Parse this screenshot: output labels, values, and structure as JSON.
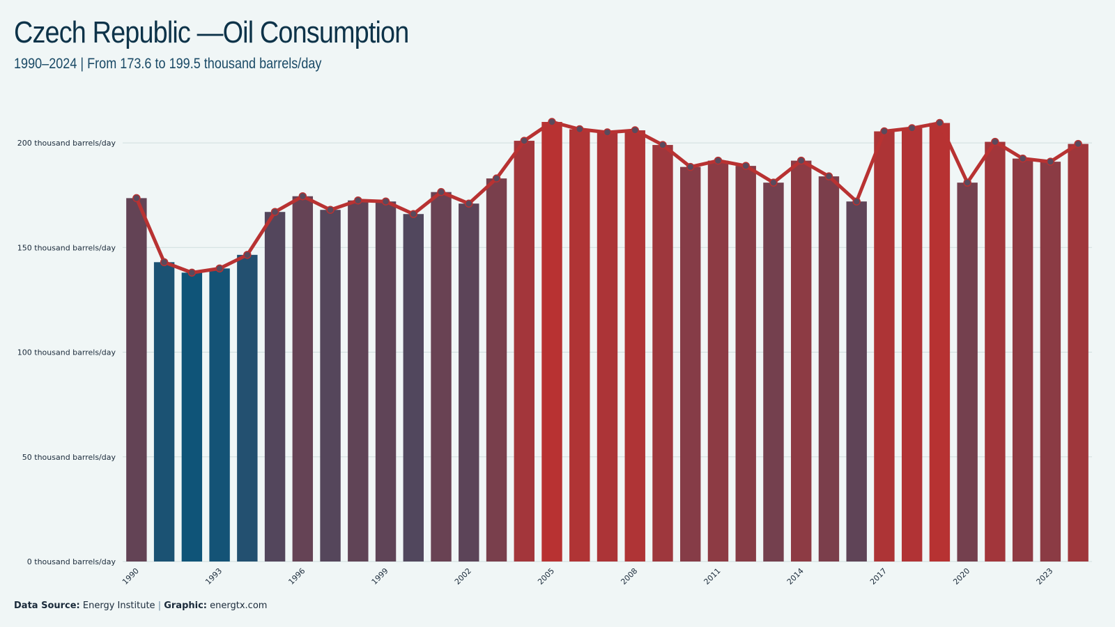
{
  "header": {
    "title": "Czech Republic —Oil Consumption",
    "subtitle": "1990–2024 | From 173.6 to 199.5 thousand barrels/day"
  },
  "footer": {
    "source_label": "Data Source:",
    "source_value": "Energy Institute",
    "separator": "|",
    "graphic_label": "Graphic:",
    "graphic_value": "energtx.com"
  },
  "colors": {
    "background": "#f0f6f6",
    "low": "#0f5478",
    "high": "#b83232",
    "line": "#b83232",
    "marker_fill": "#5a4a5c",
    "gridline": "#cfdede"
  },
  "chart_data": {
    "type": "bar",
    "title": "Czech Republic —Oil Consumption",
    "subtitle": "1990–2024 | From 173.6 to 199.5 thousand barrels/day",
    "xlabel": "",
    "ylabel": "",
    "ylim": [
      0,
      215
    ],
    "yticks": [
      0,
      50,
      100,
      150,
      200
    ],
    "ytick_labels": [
      "0 thousand barrels/day",
      "50 thousand barrels/day",
      "100 thousand barrels/day",
      "150 thousand barrels/day",
      "200 thousand barrels/day"
    ],
    "xtick_labels": [
      "1990",
      "1993",
      "1996",
      "1999",
      "2002",
      "2005",
      "2008",
      "2011",
      "2014",
      "2017",
      "2020",
      "2023"
    ],
    "grid": true,
    "legend": "none",
    "overlay": "line with markers",
    "categories": [
      1990,
      1991,
      1992,
      1993,
      1994,
      1995,
      1996,
      1997,
      1998,
      1999,
      2000,
      2001,
      2002,
      2003,
      2004,
      2005,
      2006,
      2007,
      2008,
      2009,
      2010,
      2011,
      2012,
      2013,
      2014,
      2015,
      2016,
      2017,
      2018,
      2019,
      2020,
      2021,
      2022,
      2023,
      2024
    ],
    "values": [
      173.6,
      143.0,
      138.0,
      140.0,
      146.5,
      167.0,
      174.5,
      168.0,
      172.5,
      172.0,
      166.0,
      176.5,
      171.0,
      183.0,
      201.0,
      210.0,
      206.5,
      205.0,
      206.0,
      199.0,
      188.5,
      191.5,
      189.0,
      181.0,
      191.5,
      184.0,
      172.0,
      205.5,
      207.0,
      209.5,
      181.0,
      200.5,
      192.5,
      191.0,
      199.5
    ]
  }
}
